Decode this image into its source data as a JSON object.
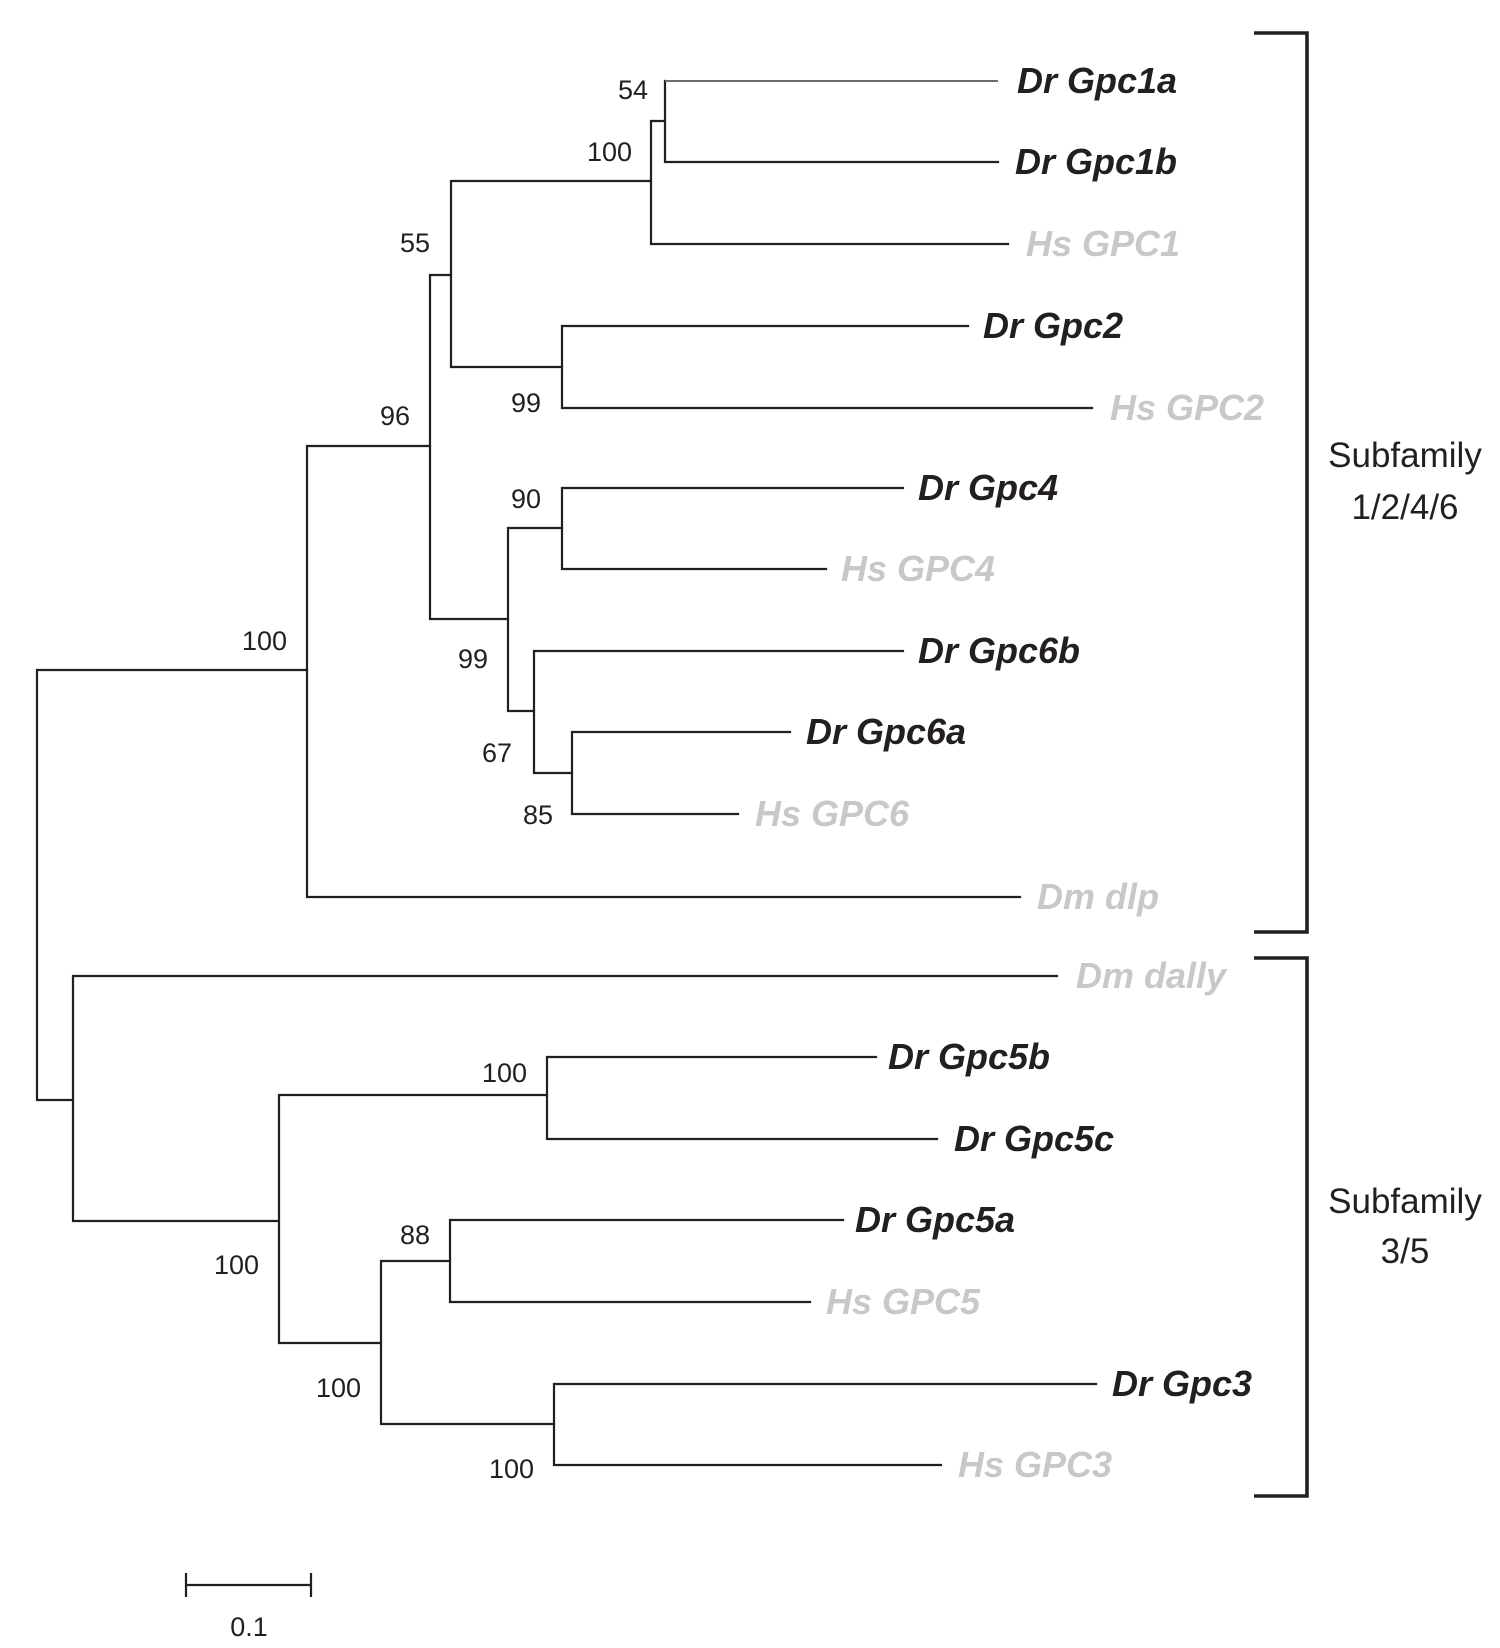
{
  "tree": {
    "taxa": [
      {
        "id": "t1",
        "label": "Dr Gpc1a",
        "style": "dr"
      },
      {
        "id": "t2",
        "label": "Dr Gpc1b",
        "style": "dr"
      },
      {
        "id": "t3",
        "label": "Hs GPC1",
        "style": "ref"
      },
      {
        "id": "t4",
        "label": "Dr Gpc2",
        "style": "dr"
      },
      {
        "id": "t5",
        "label": "Hs GPC2",
        "style": "ref"
      },
      {
        "id": "t6",
        "label": "Dr Gpc4",
        "style": "dr"
      },
      {
        "id": "t7",
        "label": "Hs GPC4",
        "style": "ref"
      },
      {
        "id": "t8",
        "label": "Dr Gpc6b",
        "style": "dr"
      },
      {
        "id": "t9",
        "label": "Dr Gpc6a",
        "style": "dr"
      },
      {
        "id": "t10",
        "label": "Hs GPC6",
        "style": "ref"
      },
      {
        "id": "t11",
        "label": "Dm dlp",
        "style": "ref"
      },
      {
        "id": "t12",
        "label": "Dm dally",
        "style": "ref"
      },
      {
        "id": "t13",
        "label": "Dr Gpc5b",
        "style": "dr"
      },
      {
        "id": "t14",
        "label": "Dr Gpc5c",
        "style": "dr"
      },
      {
        "id": "t15",
        "label": "Dr Gpc5a",
        "style": "dr"
      },
      {
        "id": "t16",
        "label": "Hs GPC5",
        "style": "ref"
      },
      {
        "id": "t17",
        "label": "Dr Gpc3",
        "style": "dr"
      },
      {
        "id": "t18",
        "label": "Hs GPC3",
        "style": "ref"
      }
    ],
    "bootstrap": {
      "gpc1a_gpc1b": "54",
      "gpc1_clade": "100",
      "gpc1_gpc2": "55",
      "gpc2_clade": "99",
      "gpc1246_core": "96",
      "gpc4_clade": "90",
      "gpc4_gpc6": "99",
      "gpc6_clade": "67",
      "gpc6a_hsgpc6": "85",
      "subfamily_1246": "100",
      "gpc5bc": "100",
      "gpc5_3": "100",
      "gpc5a_hsgpc5": "88",
      "gpc5_gpc3": "100",
      "gpc3_clade": "100"
    },
    "colors": {
      "zebrafish": "#231f20",
      "reference": "#c7c8ca",
      "branch": "#231f20"
    }
  },
  "groups": {
    "subfamily_1246": {
      "line1": "Subfamily",
      "line2": "1/2/4/6"
    },
    "subfamily_35": {
      "line1": "Subfamily",
      "line2": "3/5"
    }
  },
  "scale_bar": {
    "label": "0.1"
  }
}
